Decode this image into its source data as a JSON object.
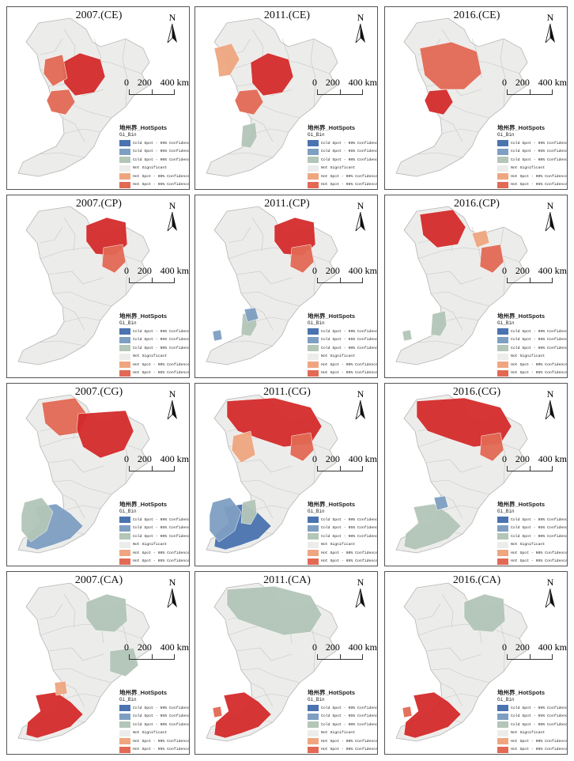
{
  "legend": {
    "title": "地州界_HotSpots",
    "subtitle": "Gi_Bin",
    "items": [
      {
        "label": "Cold Spot - 99% Confidence",
        "color": "#4a73b0"
      },
      {
        "label": "Cold Spot - 95% Confidence",
        "color": "#7f9fc2"
      },
      {
        "label": "Cold Spot - 90% Confidence",
        "color": "#b3c6b8"
      },
      {
        "label": "Not Significant",
        "color": "#ececea"
      },
      {
        "label": "Hot Spot - 90% Confidence",
        "color": "#efa680"
      },
      {
        "label": "Hot Spot - 95% Confidence",
        "color": "#e26a55"
      },
      {
        "label": "Hot Spot - 99% Confidence",
        "color": "#d42c2c"
      }
    ]
  },
  "north_label": "N",
  "scale": {
    "t0": "0",
    "t1": "200",
    "t2": "400 km"
  },
  "panels": [
    {
      "title": "2007.(CE)",
      "spots": [
        {
          "r": "center",
          "c": 6
        },
        {
          "r": "center_west",
          "c": 5
        },
        {
          "r": "central_south",
          "c": 5
        }
      ]
    },
    {
      "title": "2011.(CE)",
      "spots": [
        {
          "r": "center",
          "c": 6
        },
        {
          "r": "west_mid",
          "c": 4
        },
        {
          "r": "central_south",
          "c": 5
        },
        {
          "r": "south_mid",
          "c": 2
        }
      ]
    },
    {
      "title": "2016.(CE)",
      "spots": [
        {
          "r": "center_wide",
          "c": 5
        },
        {
          "r": "central_south",
          "c": 6
        }
      ]
    },
    {
      "title": "2007.(CP)",
      "spots": [
        {
          "r": "north_center",
          "c": 6
        },
        {
          "r": "north_center_s",
          "c": 5
        }
      ]
    },
    {
      "title": "2011.(CP)",
      "spots": [
        {
          "r": "north_center",
          "c": 6
        },
        {
          "r": "north_center_s",
          "c": 5
        },
        {
          "r": "south_mid",
          "c": 2
        },
        {
          "r": "south_spot",
          "c": 1
        },
        {
          "r": "sw_spot",
          "c": 1
        }
      ]
    },
    {
      "title": "2016.(CP)",
      "spots": [
        {
          "r": "north_west_top",
          "c": 6
        },
        {
          "r": "north_east_small",
          "c": 4
        },
        {
          "r": "north_center_s",
          "c": 5
        },
        {
          "r": "south_mid",
          "c": 2
        },
        {
          "r": "sw_spot",
          "c": 2
        }
      ]
    },
    {
      "title": "2007.(CG)",
      "spots": [
        {
          "r": "north_west_top",
          "c": 5
        },
        {
          "r": "north_east_big",
          "c": 6
        },
        {
          "r": "south_big",
          "c": 1
        },
        {
          "r": "south_wide",
          "c": 2
        }
      ]
    },
    {
      "title": "2011.(CG)",
      "spots": [
        {
          "r": "north_wide",
          "c": 6
        },
        {
          "r": "center_west",
          "c": 4
        },
        {
          "r": "north_center_s",
          "c": 5
        },
        {
          "r": "south_big",
          "c": 0
        },
        {
          "r": "south_wide",
          "c": 1
        },
        {
          "r": "south_mid",
          "c": 2
        }
      ]
    },
    {
      "title": "2016.(CG)",
      "spots": [
        {
          "r": "north_wide",
          "c": 6
        },
        {
          "r": "north_center_s",
          "c": 5
        },
        {
          "r": "south_big",
          "c": 2
        },
        {
          "r": "south_spot",
          "c": 1
        }
      ]
    },
    {
      "title": "2007.(CA)",
      "spots": [
        {
          "r": "north_center",
          "c": 2
        },
        {
          "r": "east_mid",
          "c": 2
        },
        {
          "r": "south_big",
          "c": 6
        },
        {
          "r": "south_top_spot",
          "c": 4
        }
      ]
    },
    {
      "title": "2011.(CA)",
      "spots": [
        {
          "r": "north_wide",
          "c": 2
        },
        {
          "r": "south_big",
          "c": 6
        },
        {
          "r": "sw_spot",
          "c": 5
        }
      ]
    },
    {
      "title": "2016.(CA)",
      "spots": [
        {
          "r": "north_center",
          "c": 2
        },
        {
          "r": "south_big",
          "c": 6
        },
        {
          "r": "sw_spot",
          "c": 5
        }
      ]
    }
  ]
}
